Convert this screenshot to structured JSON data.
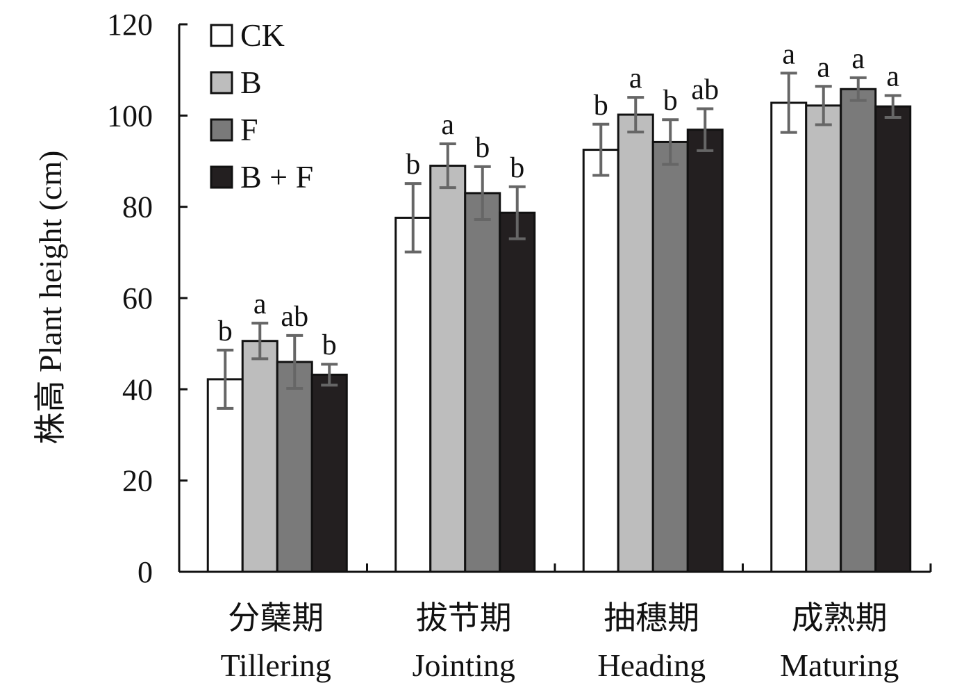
{
  "chart_data": {
    "type": "bar",
    "title": "",
    "xlabel": "",
    "ylabel": "株高 Plant height (cm)",
    "ylim": [
      0,
      120
    ],
    "yticks": [
      0,
      20,
      40,
      60,
      80,
      100,
      120
    ],
    "grid": false,
    "legend_position": "top-left",
    "categories": [
      {
        "cn": "分蘖期",
        "en": "Tillering"
      },
      {
        "cn": "拔节期",
        "en": "Jointing"
      },
      {
        "cn": "抽穗期",
        "en": "Heading"
      },
      {
        "cn": "成熟期",
        "en": "Maturing"
      }
    ],
    "series": [
      {
        "name": "CK",
        "color": "#ffffff",
        "values": [
          42.2,
          77.6,
          92.5,
          102.8
        ],
        "errors": [
          6.4,
          7.5,
          5.6,
          6.5
        ],
        "letters": [
          "b",
          "b",
          "b",
          "a"
        ]
      },
      {
        "name": "B",
        "color": "#bdbdbd",
        "values": [
          50.6,
          89.0,
          100.2,
          102.2
        ],
        "errors": [
          3.9,
          4.8,
          3.8,
          4.2
        ],
        "letters": [
          "a",
          "a",
          "a",
          "a"
        ]
      },
      {
        "name": "F",
        "color": "#7a7a7a",
        "values": [
          46.0,
          83.0,
          94.2,
          105.8
        ],
        "errors": [
          5.8,
          5.8,
          4.9,
          2.5
        ],
        "letters": [
          "ab",
          "b",
          "b",
          "a"
        ]
      },
      {
        "name": "B + F",
        "color": "#231f20",
        "values": [
          43.2,
          78.7,
          96.9,
          102.0
        ],
        "errors": [
          2.3,
          5.7,
          4.6,
          2.4
        ],
        "letters": [
          "b",
          "b",
          "ab",
          "a"
        ]
      }
    ]
  }
}
